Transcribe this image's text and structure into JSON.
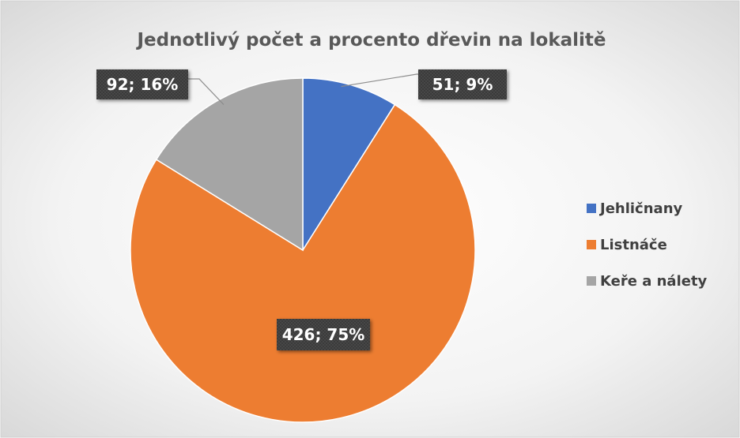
{
  "chart_data": {
    "type": "pie",
    "title": "Jednotlivý počet a procento dřevin na lokalitě",
    "slices": [
      {
        "name": "Jehličnany",
        "value": 51,
        "percent": 9,
        "label": "51; 9%",
        "color": "#4472C4"
      },
      {
        "name": "Listnáče",
        "value": 426,
        "percent": 75,
        "label": "426; 75%",
        "color": "#ED7D31"
      },
      {
        "name": "Keře a nálety",
        "value": 92,
        "percent": 16,
        "label": "92; 16%",
        "color": "#A5A5A5"
      }
    ],
    "legend_position": "right",
    "label_style": "dark callout boxes",
    "background": "light gray radial gradient"
  }
}
